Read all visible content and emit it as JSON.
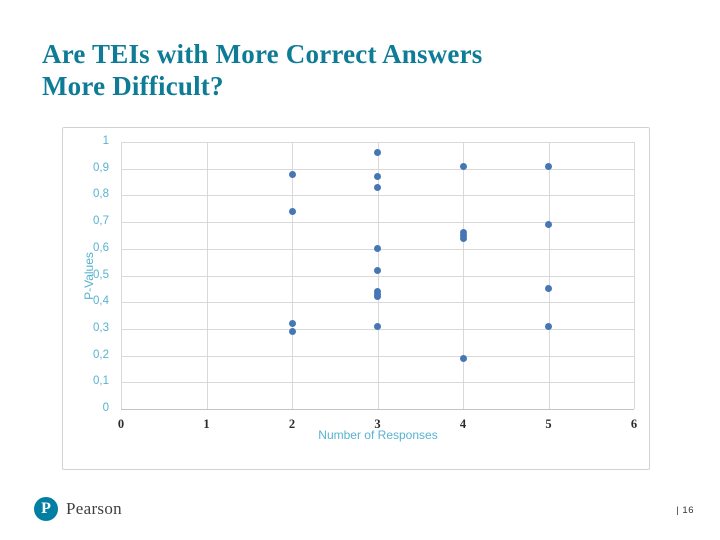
{
  "slide": {
    "title_line1": "Are TEIs with More Correct Answers",
    "title_line2": "More Difficult?",
    "brand": "Pearson",
    "brand_initial": "P",
    "page_number": "| 16"
  },
  "colors": {
    "title_teal": "#0E7C96",
    "axis_blue": "#57B3D0",
    "point_blue": "#4677B4",
    "brand_teal": "#007FA3",
    "grid": "#D9D9D9",
    "x_tick": "#2B2B2B",
    "footer_text": "#3F3F3F"
  },
  "chart_data": {
    "type": "scatter",
    "title": "",
    "xlabel": "Number of Responses",
    "ylabel": "P-Values",
    "xlim": [
      0,
      6
    ],
    "ylim": [
      0,
      1
    ],
    "x_ticks": [
      "0",
      "1",
      "2",
      "3",
      "4",
      "5",
      "6"
    ],
    "y_ticks": [
      "0",
      "0,1",
      "0,2",
      "0,3",
      "0,4",
      "0,5",
      "0,6",
      "0,7",
      "0,8",
      "0,9",
      "1"
    ],
    "grid": true,
    "legend": false,
    "points": [
      [
        2,
        0.88
      ],
      [
        2,
        0.74
      ],
      [
        2,
        0.32
      ],
      [
        2,
        0.29
      ],
      [
        3,
        0.96
      ],
      [
        3,
        0.87
      ],
      [
        3,
        0.83
      ],
      [
        3,
        0.6
      ],
      [
        3,
        0.52
      ],
      [
        3,
        0.44
      ],
      [
        3,
        0.43
      ],
      [
        3,
        0.42
      ],
      [
        3,
        0.31
      ],
      [
        4,
        0.91
      ],
      [
        4,
        0.66
      ],
      [
        4,
        0.65
      ],
      [
        4,
        0.64
      ],
      [
        4,
        0.19
      ],
      [
        5,
        0.91
      ],
      [
        5,
        0.69
      ],
      [
        5,
        0.45
      ],
      [
        5,
        0.31
      ]
    ]
  }
}
